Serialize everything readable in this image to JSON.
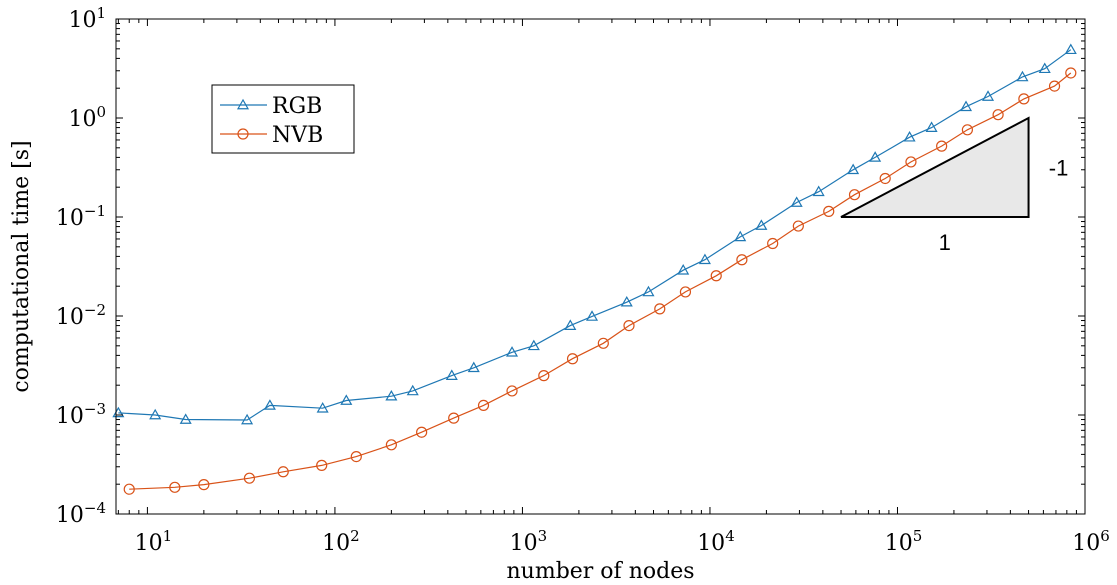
{
  "chart_data": {
    "type": "line",
    "title": "",
    "xlabel": "number of nodes",
    "ylabel": "computational time [s]",
    "xscale": "log",
    "yscale": "log",
    "xlim": [
      6.8,
      1000000
    ],
    "ylim": [
      0.0001,
      10
    ],
    "x_ticks": [
      {
        "value": 10,
        "base": "10",
        "exp": "1"
      },
      {
        "value": 100,
        "base": "10",
        "exp": "2"
      },
      {
        "value": 1000,
        "base": "10",
        "exp": "3"
      },
      {
        "value": 10000,
        "base": "10",
        "exp": "4"
      },
      {
        "value": 100000,
        "base": "10",
        "exp": "5"
      },
      {
        "value": 1000000,
        "base": "10",
        "exp": "6"
      }
    ],
    "y_ticks": [
      {
        "value": 0.0001,
        "base": "10",
        "exp": "−4"
      },
      {
        "value": 0.001,
        "base": "10",
        "exp": "−3"
      },
      {
        "value": 0.01,
        "base": "10",
        "exp": "−2"
      },
      {
        "value": 0.1,
        "base": "10",
        "exp": "−1"
      },
      {
        "value": 1,
        "base": "10",
        "exp": "0"
      },
      {
        "value": 10,
        "base": "10",
        "exp": "1"
      }
    ],
    "grid": false,
    "legend_position": "top-left",
    "series": [
      {
        "name": "RGB",
        "color": "#1f78b4",
        "marker": "triangle",
        "x": [
          7,
          11,
          16,
          34,
          45,
          86,
          115,
          200,
          260,
          420,
          550,
          880,
          1150,
          1800,
          2350,
          3600,
          4700,
          7200,
          9400,
          14500,
          18800,
          29000,
          38000,
          58000,
          76000,
          116000,
          152000,
          232000,
          304000,
          464000,
          610000,
          840000
        ],
        "y": [
          0.00105,
          0.001,
          0.0009,
          0.00089,
          0.00125,
          0.00117,
          0.0014,
          0.00155,
          0.00175,
          0.0025,
          0.003,
          0.0043,
          0.005,
          0.008,
          0.0099,
          0.0138,
          0.0175,
          0.029,
          0.037,
          0.063,
          0.082,
          0.14,
          0.18,
          0.3,
          0.4,
          0.64,
          0.8,
          1.3,
          1.65,
          2.6,
          3.15,
          4.9
        ]
      },
      {
        "name": "NVB",
        "color": "#d95319",
        "marker": "circle",
        "x": [
          8,
          14,
          20,
          35,
          53,
          85,
          130,
          200,
          290,
          430,
          620,
          880,
          1300,
          1850,
          2700,
          3700,
          5400,
          7400,
          10800,
          14800,
          21600,
          29600,
          43000,
          59000,
          86000,
          118000,
          172000,
          236000,
          344000,
          472000,
          688000,
          840000
        ],
        "y": [
          0.000178,
          0.000186,
          0.000198,
          0.00023,
          0.000267,
          0.00031,
          0.00038,
          0.0005,
          0.00067,
          0.00093,
          0.00125,
          0.00175,
          0.0025,
          0.0037,
          0.0053,
          0.008,
          0.0118,
          0.0175,
          0.0255,
          0.037,
          0.054,
          0.081,
          0.114,
          0.168,
          0.245,
          0.36,
          0.52,
          0.76,
          1.08,
          1.56,
          2.1,
          2.85
        ]
      }
    ],
    "annotations": {
      "slope_triangle": {
        "x_start": 50000,
        "x_end": 500000,
        "y_bottom": 0.1,
        "y_top": 1,
        "fill": "#e8e8e8",
        "run_label": "1",
        "rise_label": "-1"
      }
    }
  }
}
